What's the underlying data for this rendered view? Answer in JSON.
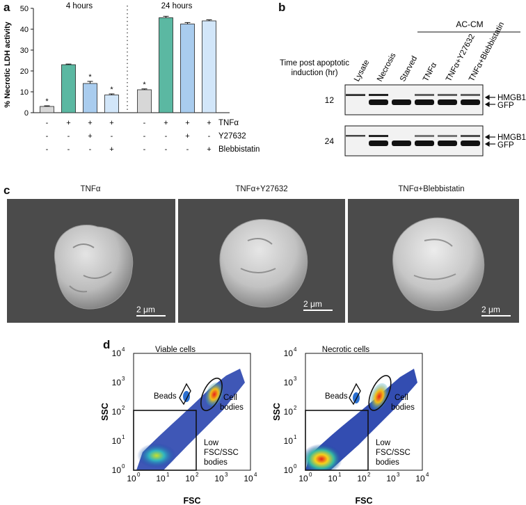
{
  "panel_letters": {
    "a": "a",
    "b": "b",
    "c": "c",
    "d": "d"
  },
  "chart_data": [
    {
      "type": "bar",
      "ylabel": "% Necrotic LDH activity",
      "ylim": [
        0,
        50
      ],
      "yticks": [
        "0",
        "10",
        "20",
        "30",
        "40",
        "50"
      ],
      "groups": [
        {
          "title": "4 hours",
          "values": [
            3,
            23,
            14,
            8.5
          ],
          "errors": [
            0.3,
            0.3,
            1.0,
            0.5
          ],
          "significance": [
            "*",
            "",
            "*",
            "*"
          ]
        },
        {
          "title": "24 hours",
          "values": [
            11,
            45.5,
            42.5,
            44
          ],
          "errors": [
            0.4,
            0.7,
            0.7,
            0.5
          ],
          "significance": [
            "*",
            "",
            "",
            ""
          ]
        }
      ],
      "bar_colors": [
        "#d7d7d7",
        "#5bb8a2",
        "#a9ccee",
        "#d2e6f9"
      ],
      "treatments": [
        {
          "name": "TNFα",
          "signs": [
            "-",
            "+",
            "+",
            "+",
            "-",
            "+",
            "+",
            "+"
          ]
        },
        {
          "name": "Y27632",
          "signs": [
            "-",
            "-",
            "+",
            "-",
            "-",
            "-",
            "+",
            "-"
          ]
        },
        {
          "name": "Blebbistatin",
          "signs": [
            "-",
            "-",
            "-",
            "+",
            "-",
            "-",
            "-",
            "+"
          ]
        }
      ]
    }
  ],
  "blot": {
    "header_group": "AC-CM",
    "row_label": "Time post apoptotic induction (hr)",
    "lanes": [
      "Lysate",
      "Necrosis",
      "Starved",
      "TNFα",
      "TNFα+Y27632",
      "TNFα+Blebbistatin"
    ],
    "timepoints": [
      "12",
      "24"
    ],
    "band_labels": [
      "HMGB1",
      "GFP"
    ]
  },
  "sem": {
    "titles": [
      "TNFα",
      "TNFα+Y27632",
      "TNFα+Blebbistatin"
    ],
    "scale_bar": "2 μm"
  },
  "flow": {
    "titles": [
      "Viable cells",
      "Necrotic cells"
    ],
    "xlabel": "FSC",
    "ylabel": "SSC",
    "tick_base": "10",
    "tick_exps": [
      "0",
      "1",
      "2",
      "3",
      "4"
    ],
    "gates": {
      "beads": "Beads",
      "cell_bodies_1": "Cell",
      "cell_bodies_2": "bodies",
      "low_1": "Low",
      "low_2": "FSC/SSC",
      "low_3": "bodies"
    }
  }
}
